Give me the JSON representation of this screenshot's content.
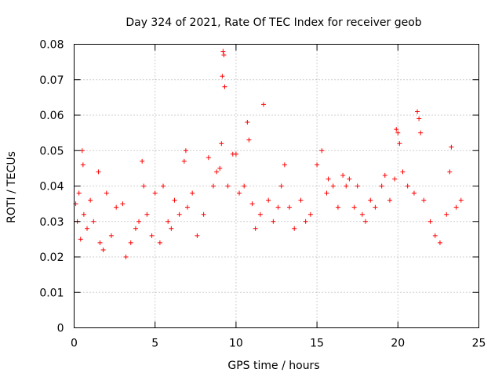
{
  "chart_data": {
    "type": "scatter",
    "title": "Day 324 of 2021, Rate Of TEC Index for receiver geob",
    "xlabel": "GPS time / hours",
    "ylabel": "ROTI / TECUs",
    "xlim": [
      0,
      25
    ],
    "ylim": [
      0,
      0.08
    ],
    "xticks": [
      0,
      5,
      10,
      15,
      20,
      25
    ],
    "xtick_labels": [
      "0",
      "5",
      "10",
      "15",
      "20",
      "25"
    ],
    "yticks": [
      0,
      0.01,
      0.02,
      0.03,
      0.04,
      0.05,
      0.06,
      0.07,
      0.08
    ],
    "ytick_labels": [
      "0",
      "0.01",
      "0.02",
      "0.03",
      "0.04",
      "0.05",
      "0.06",
      "0.07",
      "0.08"
    ],
    "grid": true,
    "marker": "+",
    "color": "#ff0000",
    "series": [
      {
        "x": [
          0.1,
          0.2,
          0.3,
          0.4,
          0.5,
          0.55,
          0.6,
          0.8,
          1.0,
          1.2,
          1.5,
          1.6,
          1.8,
          2.0,
          2.3,
          2.6,
          3.0,
          3.2,
          3.5,
          3.8,
          4.0,
          4.2,
          4.3,
          4.5,
          4.8,
          5.0,
          5.3,
          5.5,
          5.8,
          6.0,
          6.2,
          6.5,
          6.8,
          6.9,
          7.0,
          7.3,
          7.6,
          8.0,
          8.3,
          8.6,
          8.8,
          9.0,
          9.1,
          9.15,
          9.2,
          9.25,
          9.3,
          9.5,
          9.8,
          10.0,
          10.2,
          10.5,
          10.7,
          10.8,
          11.0,
          11.2,
          11.5,
          11.7,
          12.0,
          12.3,
          12.6,
          12.8,
          13.0,
          13.3,
          13.6,
          14.0,
          14.3,
          14.6,
          15.0,
          15.3,
          15.6,
          15.7,
          16.0,
          16.3,
          16.6,
          16.8,
          17.0,
          17.3,
          17.5,
          17.8,
          18.0,
          18.3,
          18.6,
          19.0,
          19.2,
          19.5,
          19.8,
          19.9,
          20.0,
          20.1,
          20.3,
          20.6,
          21.0,
          21.2,
          21.3,
          21.4,
          21.6,
          22.0,
          22.3,
          22.6,
          23.0,
          23.2,
          23.3,
          23.6,
          23.9
        ],
        "y": [
          0.035,
          0.03,
          0.038,
          0.025,
          0.05,
          0.046,
          0.032,
          0.028,
          0.036,
          0.03,
          0.044,
          0.024,
          0.022,
          0.038,
          0.026,
          0.034,
          0.035,
          0.02,
          0.024,
          0.028,
          0.03,
          0.047,
          0.04,
          0.032,
          0.026,
          0.038,
          0.024,
          0.04,
          0.03,
          0.028,
          0.036,
          0.032,
          0.047,
          0.05,
          0.034,
          0.038,
          0.026,
          0.032,
          0.048,
          0.04,
          0.044,
          0.045,
          0.052,
          0.071,
          0.078,
          0.077,
          0.068,
          0.04,
          0.049,
          0.049,
          0.038,
          0.04,
          0.058,
          0.053,
          0.035,
          0.028,
          0.032,
          0.063,
          0.036,
          0.03,
          0.034,
          0.04,
          0.046,
          0.034,
          0.028,
          0.036,
          0.03,
          0.032,
          0.046,
          0.05,
          0.038,
          0.042,
          0.04,
          0.034,
          0.043,
          0.04,
          0.042,
          0.034,
          0.04,
          0.032,
          0.03,
          0.036,
          0.034,
          0.04,
          0.043,
          0.036,
          0.042,
          0.056,
          0.055,
          0.052,
          0.044,
          0.04,
          0.038,
          0.061,
          0.059,
          0.055,
          0.036,
          0.03,
          0.026,
          0.024,
          0.032,
          0.044,
          0.051,
          0.034,
          0.036
        ]
      }
    ]
  }
}
